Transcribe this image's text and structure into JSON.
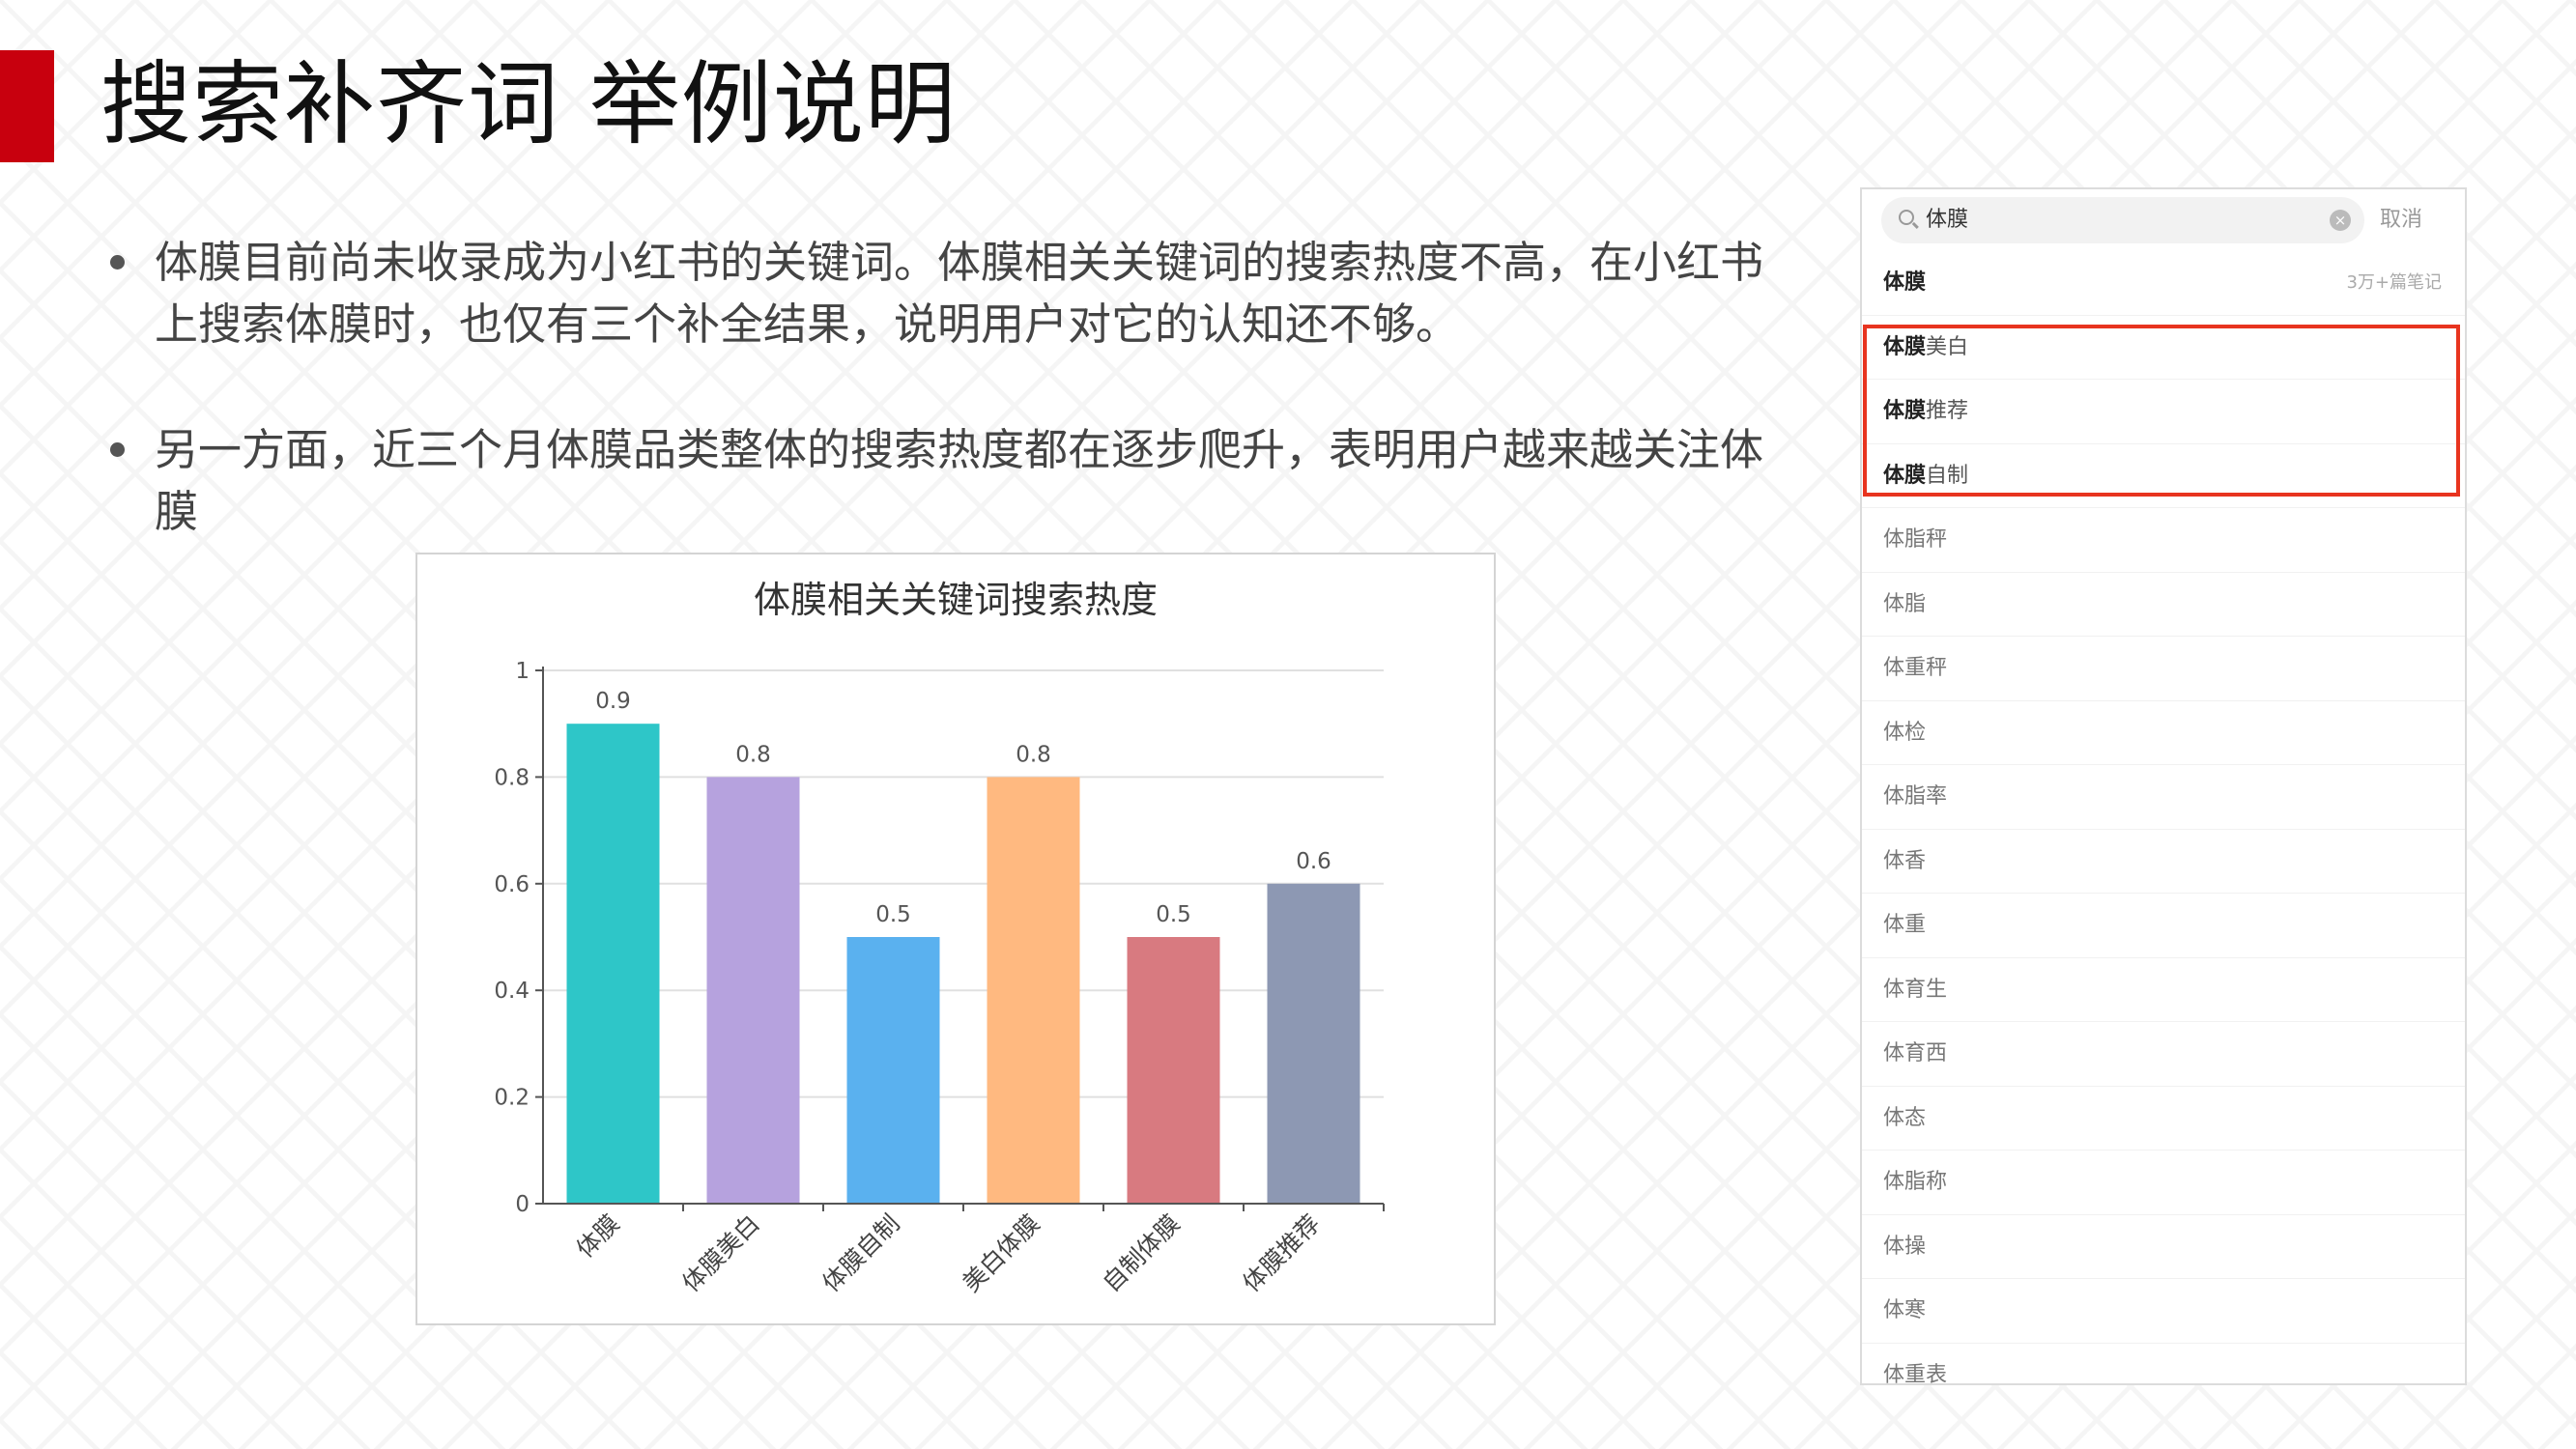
{
  "slide": {
    "title": "搜索补齐词 举例说明",
    "accent_color": "#c8000e",
    "bullets": [
      "体膜目前尚未收录成为小红书的关键词。体膜相关关键词的搜索热度不高，在小红书上搜索体膜时，也仅有三个补全结果，说明用户对它的认知还不够。",
      "另一方面，近三个月体膜品类整体的搜索热度都在逐步爬升，表明用户越来越关注体膜"
    ]
  },
  "chart_data": {
    "type": "bar",
    "title": "体膜相关关键词搜索热度",
    "categories": [
      "体膜",
      "体膜美白",
      "体膜自制",
      "美白体膜",
      "自制体膜",
      "体膜推荐"
    ],
    "values": [
      0.9,
      0.8,
      0.5,
      0.8,
      0.5,
      0.6
    ],
    "value_labels": [
      "0.9",
      "0.8",
      "0.5",
      "0.8",
      "0.5",
      "0.6"
    ],
    "colors": [
      "#2ec6c8",
      "#b6a2de",
      "#5ab1ef",
      "#ffb980",
      "#d87a80",
      "#8d98b3"
    ],
    "yticks": [
      "0",
      "0.2",
      "0.4",
      "0.6",
      "0.8",
      "1"
    ],
    "ylim": [
      0,
      1
    ],
    "xlabel": "",
    "ylabel": "",
    "grid": true
  },
  "search_panel": {
    "query": "体膜",
    "cancel_label": "取消",
    "clear_icon": "clear-icon",
    "highlight_color": "#e8341f",
    "results": [
      {
        "prefix": "体膜",
        "suffix": "",
        "meta": "3万+篇笔记"
      },
      {
        "prefix": "体膜",
        "suffix": "美白",
        "meta": ""
      },
      {
        "prefix": "体膜",
        "suffix": "推荐",
        "meta": ""
      },
      {
        "prefix": "体膜",
        "suffix": "自制",
        "meta": ""
      },
      {
        "prefix": "",
        "suffix": "体脂秤",
        "meta": ""
      },
      {
        "prefix": "",
        "suffix": "体脂",
        "meta": ""
      },
      {
        "prefix": "",
        "suffix": "体重秤",
        "meta": ""
      },
      {
        "prefix": "",
        "suffix": "体检",
        "meta": ""
      },
      {
        "prefix": "",
        "suffix": "体脂率",
        "meta": ""
      },
      {
        "prefix": "",
        "suffix": "体香",
        "meta": ""
      },
      {
        "prefix": "",
        "suffix": "体重",
        "meta": ""
      },
      {
        "prefix": "",
        "suffix": "体育生",
        "meta": ""
      },
      {
        "prefix": "",
        "suffix": "体育西",
        "meta": ""
      },
      {
        "prefix": "",
        "suffix": "体态",
        "meta": ""
      },
      {
        "prefix": "",
        "suffix": "体脂称",
        "meta": ""
      },
      {
        "prefix": "",
        "suffix": "体操",
        "meta": ""
      },
      {
        "prefix": "",
        "suffix": "体寒",
        "meta": ""
      },
      {
        "prefix": "",
        "suffix": "体重表",
        "meta": ""
      }
    ]
  }
}
